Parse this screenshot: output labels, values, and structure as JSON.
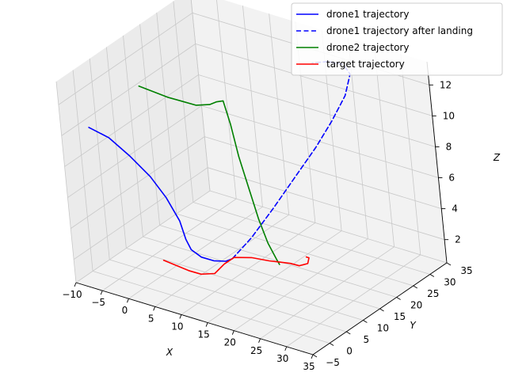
{
  "chart_data": {
    "type": "line",
    "projection": "3d",
    "xlabel": "X",
    "ylabel": "Y",
    "zlabel": "Z",
    "xlim": [
      -10,
      35
    ],
    "ylim": [
      -5,
      35
    ],
    "zlim": [
      0.5,
      13.5
    ],
    "xticks": [
      -10,
      -5,
      0,
      5,
      10,
      15,
      20,
      25,
      30,
      35
    ],
    "yticks": [
      -5,
      0,
      5,
      10,
      15,
      20,
      25,
      30,
      35
    ],
    "zticks": [
      2,
      4,
      6,
      8,
      10,
      12
    ],
    "grid": true,
    "legend_position": "top-right",
    "series": [
      {
        "name": "drone1 trajectory",
        "color": "#0000ff",
        "linestyle": "solid",
        "points": [
          [
            -8,
            0,
            10
          ],
          [
            -5,
            1,
            9.5
          ],
          [
            -2,
            2,
            8.5
          ],
          [
            1,
            3,
            7.3
          ],
          [
            3,
            4,
            6
          ],
          [
            4.5,
            5,
            4.5
          ],
          [
            5,
            5.5,
            3.3
          ],
          [
            5.5,
            6,
            2.6
          ],
          [
            7,
            6.5,
            2.2
          ],
          [
            9,
            7,
            2.1
          ],
          [
            11,
            7.5,
            2.2
          ],
          [
            12,
            8,
            2.4
          ]
        ]
      },
      {
        "name": "drone1 trajectory after landing",
        "color": "#0000ff",
        "linestyle": "dashed",
        "points": [
          [
            12,
            8,
            2.4
          ],
          [
            14,
            11,
            3.5
          ],
          [
            16,
            15,
            5
          ],
          [
            18,
            19,
            6.6
          ],
          [
            20,
            23,
            8.2
          ],
          [
            21.5,
            26,
            9.6
          ],
          [
            22.5,
            29,
            10.9
          ],
          [
            22.5,
            31,
            12
          ],
          [
            21,
            31.5,
            12.4
          ],
          [
            18.5,
            31,
            12.4
          ],
          [
            16,
            30,
            12.2
          ]
        ]
      },
      {
        "name": "drone2 trajectory",
        "color": "#008000",
        "linestyle": "solid",
        "points": [
          [
            -3,
            8,
            12
          ],
          [
            -1,
            9,
            11.7
          ],
          [
            1,
            10,
            11.4
          ],
          [
            3,
            11,
            11.2
          ],
          [
            5,
            12,
            11
          ],
          [
            7,
            13,
            11.1
          ],
          [
            8,
            13.5,
            11.3
          ],
          [
            9,
            14,
            11.4
          ],
          [
            10,
            14,
            10
          ],
          [
            11,
            14,
            8
          ],
          [
            12,
            14.5,
            6
          ],
          [
            13,
            15,
            4
          ],
          [
            14,
            15.5,
            2.5
          ],
          [
            15,
            16,
            1.5
          ],
          [
            15.5,
            16,
            1.2
          ]
        ]
      },
      {
        "name": "target trajectory",
        "color": "#ff0000",
        "linestyle": "solid",
        "points": [
          [
            2,
            3,
            2
          ],
          [
            4,
            3.5,
            1.8
          ],
          [
            6,
            4,
            1.6
          ],
          [
            8,
            4.5,
            1.5
          ],
          [
            10,
            5.5,
            1.6
          ],
          [
            11,
            7,
            2.1
          ],
          [
            12,
            8.5,
            2.4
          ],
          [
            14,
            10.5,
            2.3
          ],
          [
            16,
            12.5,
            2
          ],
          [
            17,
            14,
            1.8
          ],
          [
            18,
            15.5,
            1.6
          ],
          [
            19,
            16.5,
            1.4
          ],
          [
            20,
            17.5,
            1.5
          ],
          [
            20,
            18,
            1.8
          ],
          [
            19.5,
            18,
            1.8
          ]
        ]
      }
    ]
  }
}
